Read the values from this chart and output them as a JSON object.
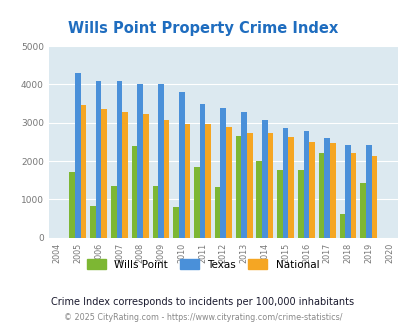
{
  "title": "Wills Point Property Crime Index",
  "years": [
    2004,
    2005,
    2006,
    2007,
    2008,
    2009,
    2010,
    2011,
    2012,
    2013,
    2014,
    2015,
    2016,
    2017,
    2018,
    2019,
    2020
  ],
  "wills_point": [
    null,
    1720,
    830,
    1340,
    2390,
    1340,
    800,
    1850,
    1310,
    2660,
    2000,
    1760,
    1760,
    2210,
    620,
    1430,
    null
  ],
  "texas": [
    null,
    4300,
    4080,
    4100,
    4000,
    4020,
    3800,
    3500,
    3390,
    3270,
    3060,
    2870,
    2780,
    2590,
    2410,
    2410,
    null
  ],
  "national": [
    null,
    3460,
    3360,
    3280,
    3220,
    3060,
    2970,
    2960,
    2900,
    2730,
    2730,
    2620,
    2490,
    2470,
    2220,
    2130,
    null
  ],
  "wills_color": "#7db733",
  "texas_color": "#4a90d9",
  "national_color": "#f5a623",
  "bg_color": "#dce9f0",
  "ylim": [
    0,
    5000
  ],
  "yticks": [
    0,
    1000,
    2000,
    3000,
    4000,
    5000
  ],
  "subtitle": "Crime Index corresponds to incidents per 100,000 inhabitants",
  "footer": "© 2025 CityRating.com - https://www.cityrating.com/crime-statistics/",
  "title_color": "#1f6dbf",
  "subtitle_color": "#1a1a2e",
  "footer_color": "#888888",
  "footer_link_color": "#4a90d9"
}
